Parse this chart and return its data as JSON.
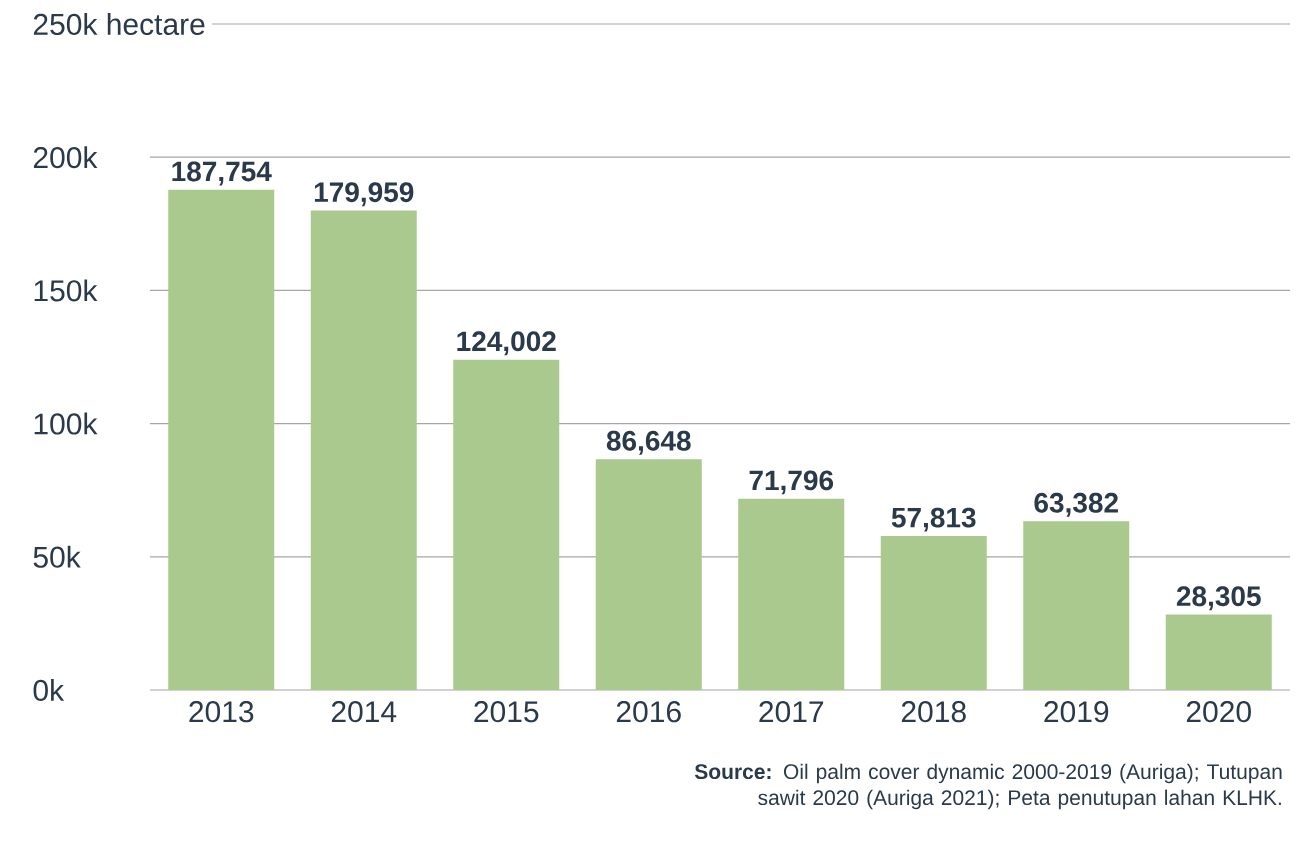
{
  "chart_data": {
    "type": "bar",
    "categories": [
      "2013",
      "2014",
      "2015",
      "2016",
      "2017",
      "2018",
      "2019",
      "2020"
    ],
    "values": [
      187754,
      179959,
      124002,
      86648,
      71796,
      57813,
      63382,
      28305
    ],
    "value_labels": [
      "187,754",
      "179,959",
      "124,002",
      "86,648",
      "71,796",
      "57,813",
      "63,382",
      "28,305"
    ],
    "color": "#a9c98e",
    "ylim": [
      0,
      250000
    ],
    "yticks": [
      {
        "value": 0,
        "label": "0k"
      },
      {
        "value": 50000,
        "label": "50k"
      },
      {
        "value": 100000,
        "label": "100k"
      },
      {
        "value": 150000,
        "label": "150k"
      },
      {
        "value": 200000,
        "label": "200k"
      },
      {
        "value": 250000,
        "label": "250k hectare"
      }
    ],
    "grid": "y",
    "annotations": [
      "**Source:** Oil palm cover dynamic 2000-2019 (Auriga); Tutupan sawit 2020 (Auriga 2021); Peta penutupan lahan KLHK."
    ]
  }
}
